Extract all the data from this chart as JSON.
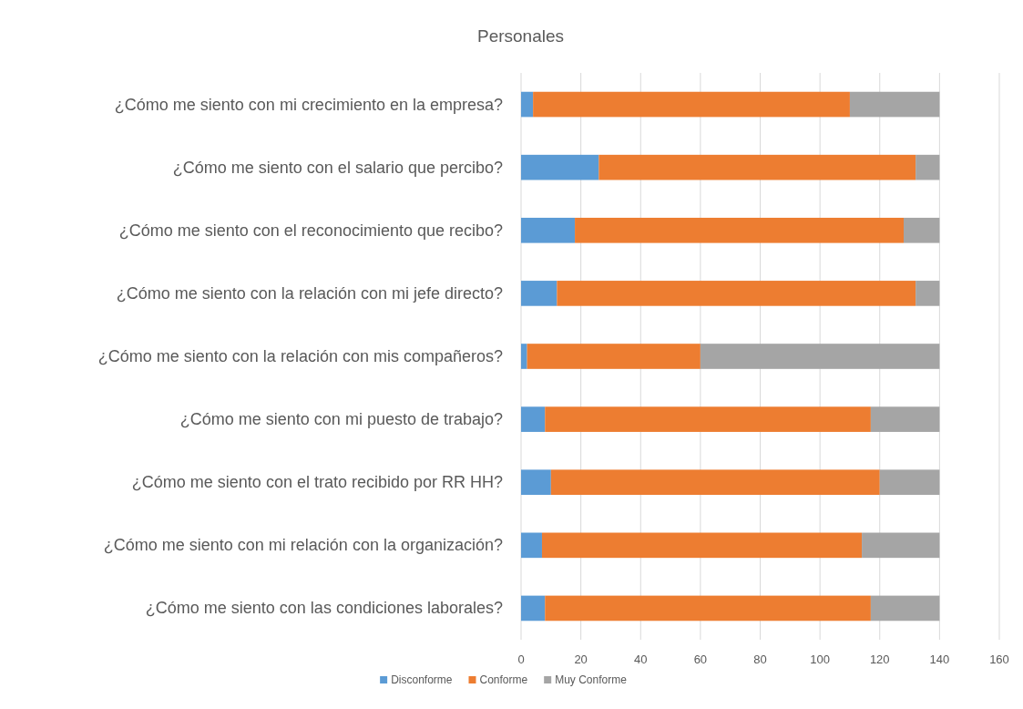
{
  "chart_data": {
    "type": "bar",
    "orientation": "horizontal",
    "stacked": true,
    "title": "Personales",
    "categories": [
      "¿Cómo me siento con mi crecimiento en la empresa?",
      "¿Cómo me siento con el salario que percibo?",
      "¿Cómo me siento con el reconocimiento que recibo?",
      "¿Cómo me siento con la relación con mi jefe directo?",
      "¿Cómo me siento con la relación con mis compañeros?",
      "¿Cómo me siento con mi puesto de trabajo?",
      "¿Cómo me siento con el trato recibido por RR HH?",
      "¿Cómo me siento con mi relación con la organización?",
      "¿Cómo me siento con las condiciones laborales?"
    ],
    "series": [
      {
        "name": "Disconforme",
        "color": "#5b9bd5",
        "values": [
          4,
          26,
          18,
          12,
          2,
          8,
          10,
          7,
          8
        ]
      },
      {
        "name": "Conforme",
        "color": "#ed7d31",
        "values": [
          106,
          106,
          110,
          120,
          58,
          109,
          110,
          107,
          109
        ]
      },
      {
        "name": "Muy Conforme",
        "color": "#a5a5a5",
        "values": [
          30,
          8,
          12,
          8,
          80,
          23,
          20,
          26,
          23
        ]
      }
    ],
    "xlim": [
      0,
      160
    ],
    "xticks": [
      0,
      20,
      40,
      60,
      80,
      100,
      120,
      140,
      160
    ],
    "grid": "x",
    "legend": "bottom"
  }
}
